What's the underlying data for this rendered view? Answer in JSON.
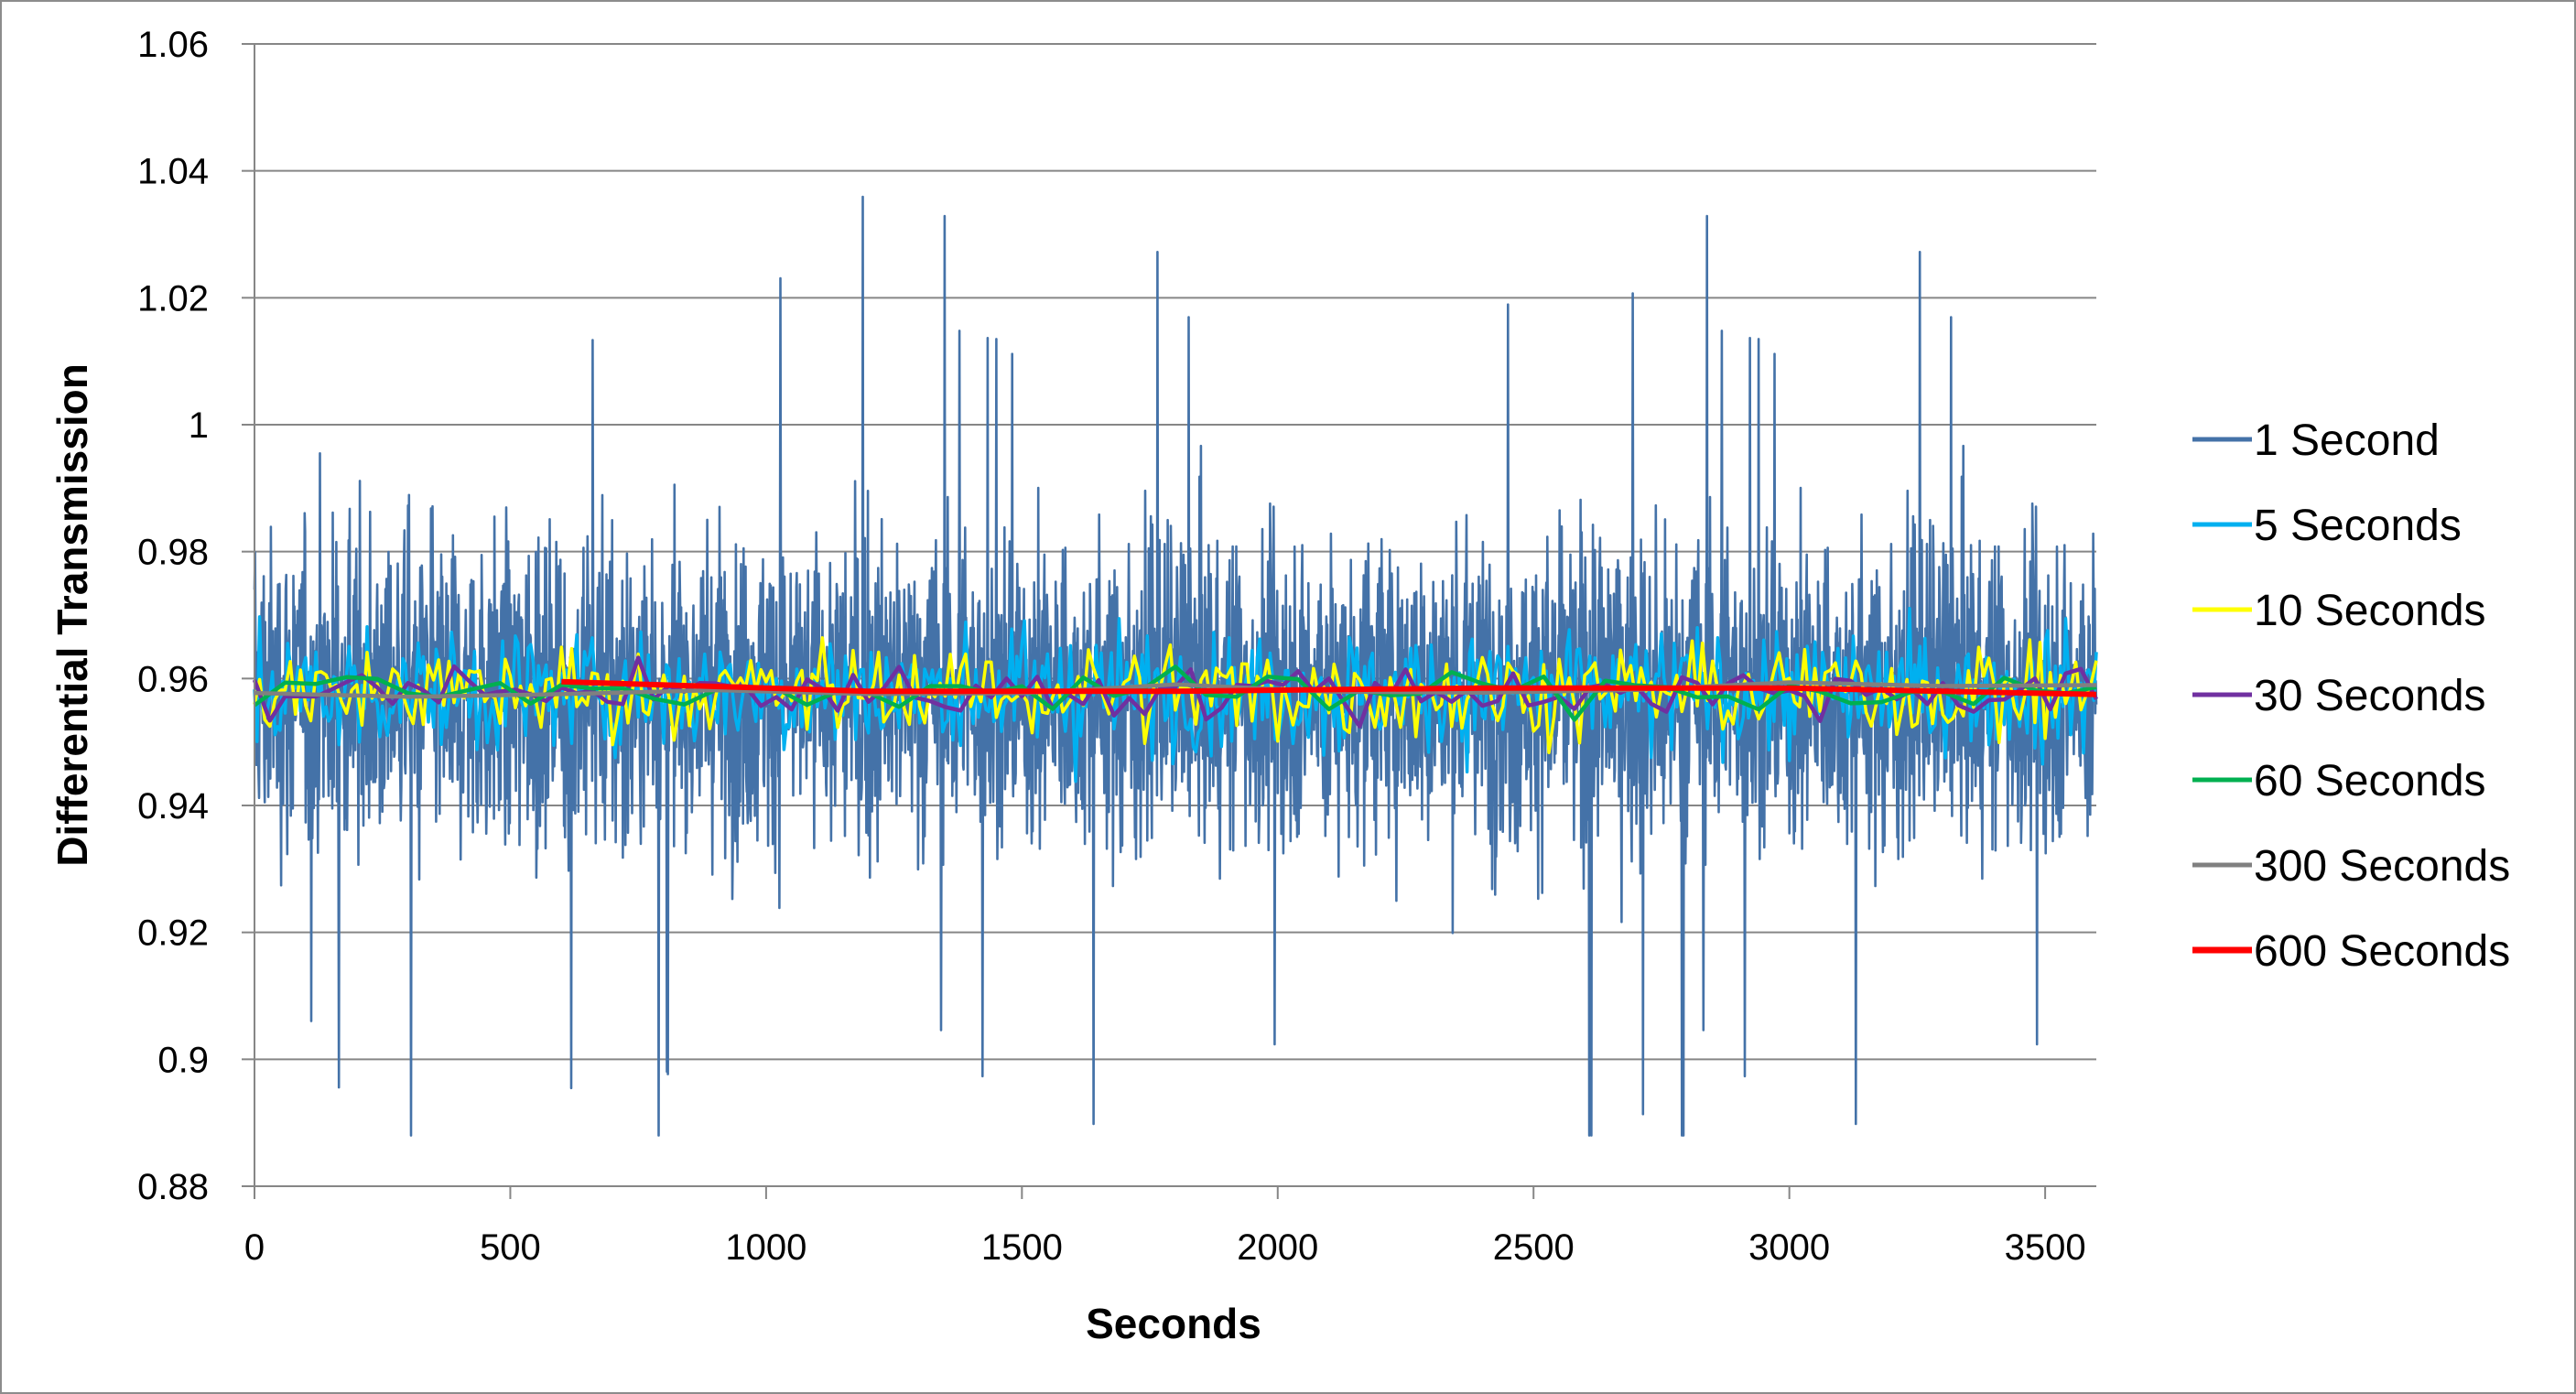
{
  "chart_data": {
    "type": "line",
    "title": "",
    "xlabel": "Seconds",
    "ylabel": "Differential Transmission",
    "xlim": [
      0,
      3600
    ],
    "ylim": [
      0.88,
      1.06
    ],
    "x_ticks": [
      "0",
      "500",
      "1000",
      "1500",
      "2000",
      "2500",
      "3000",
      "3500"
    ],
    "y_ticks": [
      "0.88",
      "0.9",
      "0.92",
      "0.94",
      "0.96",
      "0.98",
      "1",
      "1.02",
      "1.04",
      "1.06"
    ],
    "grid": "horizontal",
    "legend_position": "right",
    "mean": 0.958,
    "series": [
      {
        "name": "1 Second",
        "color": "#4472A8",
        "interval": 1,
        "spread": 0.02,
        "start": 0
      },
      {
        "name": "5 Seconds",
        "color": "#00B0F0",
        "interval": 5,
        "spread": 0.008,
        "start": 0
      },
      {
        "name": "10 Seconds",
        "color": "#FFFF00",
        "interval": 10,
        "spread": 0.006,
        "start": 0
      },
      {
        "name": "30 Seconds",
        "color": "#7030A0",
        "interval": 30,
        "spread": 0.0035,
        "start": 0
      },
      {
        "name": "60 Seconds",
        "color": "#00B050",
        "interval": 60,
        "spread": 0.0025,
        "start": 0
      },
      {
        "name": "300 Seconds",
        "color": "#808080",
        "interval": 300,
        "spread": 0.0015,
        "start": 0
      },
      {
        "name": "600 Seconds",
        "color": "#FF0000",
        "interval": 600,
        "start": 600,
        "values_at": {
          "600": 0.9595,
          "1200": 0.958,
          "1800": 0.958,
          "2400": 0.9585,
          "3000": 0.9585,
          "3600": 0.9575
        }
      }
    ]
  }
}
